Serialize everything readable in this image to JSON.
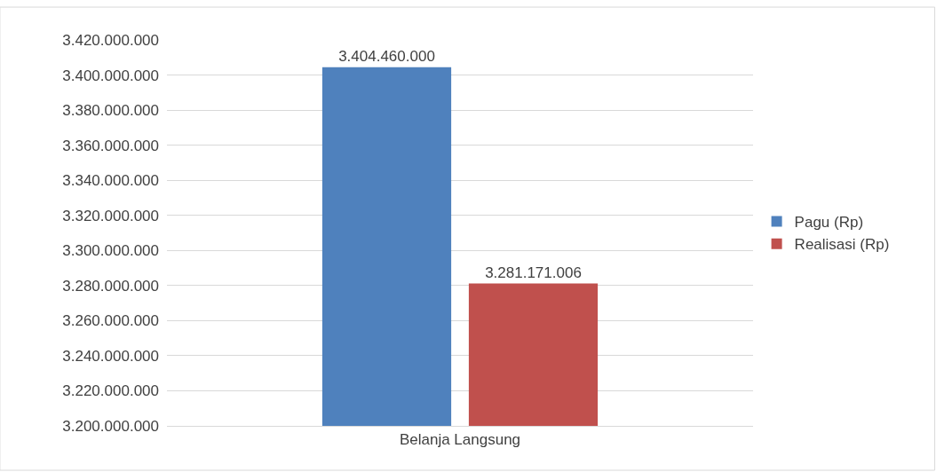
{
  "chart_data": {
    "type": "bar",
    "categories": [
      "Belanja Langsung"
    ],
    "series": [
      {
        "name": "Pagu (Rp)",
        "color": "#4f81bd",
        "values": [
          3404460000
        ],
        "value_labels": [
          "3.404.460.000"
        ]
      },
      {
        "name": "Realisasi (Rp)",
        "color": "#c0504d",
        "values": [
          3281171006
        ],
        "value_labels": [
          "3.281.171.006"
        ]
      }
    ],
    "ylim": [
      3200000000,
      3420000000
    ],
    "yticks": [
      {
        "value": 3200000000,
        "label": "3.200.000.000"
      },
      {
        "value": 3220000000,
        "label": "3.220.000.000"
      },
      {
        "value": 3240000000,
        "label": "3.240.000.000"
      },
      {
        "value": 3260000000,
        "label": "3.260.000.000"
      },
      {
        "value": 3280000000,
        "label": "3.280.000.000"
      },
      {
        "value": 3300000000,
        "label": "3.300.000.000"
      },
      {
        "value": 3320000000,
        "label": "3.320.000.000"
      },
      {
        "value": 3340000000,
        "label": "3.340.000.000"
      },
      {
        "value": 3360000000,
        "label": "3.360.000.000"
      },
      {
        "value": 3380000000,
        "label": "3.380.000.000"
      },
      {
        "value": 3400000000,
        "label": "3.400.000.000"
      },
      {
        "value": 3420000000,
        "label": "3.420.000.000"
      }
    ],
    "grid": "y",
    "legend": "right"
  }
}
